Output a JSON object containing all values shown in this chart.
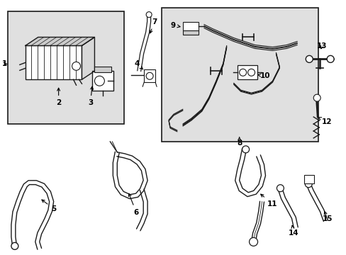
{
  "bg_color": "#ffffff",
  "box_fill": "#e0e0e0",
  "line_color": "#1a1a1a",
  "text_color": "#000000",
  "fig_width": 4.89,
  "fig_height": 3.6,
  "dpi": 100
}
